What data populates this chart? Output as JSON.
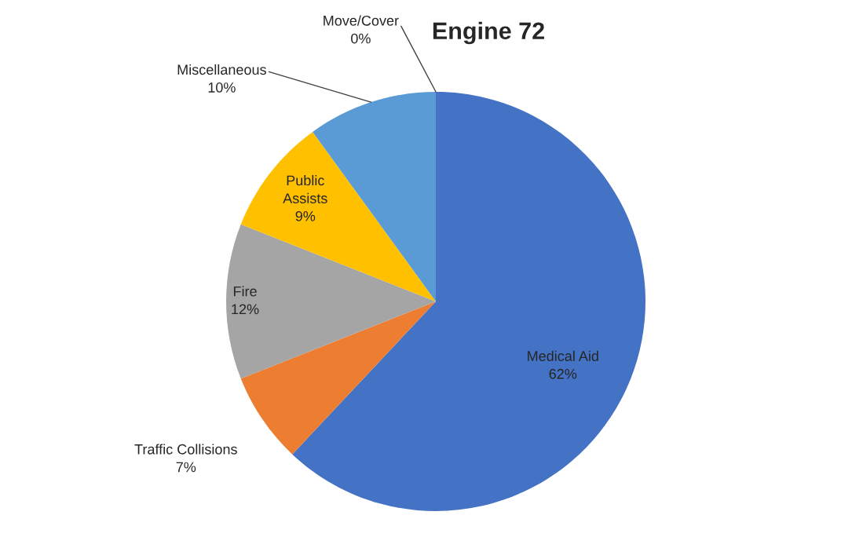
{
  "chart_data": {
    "type": "pie",
    "title": "Engine 72",
    "categories": [
      "Medical Aid",
      "Traffic Collisions",
      "Fire",
      "Public Assists",
      "Miscellaneous",
      "Move/Cover"
    ],
    "values": [
      62,
      7,
      12,
      9,
      10,
      0
    ],
    "value_labels": [
      "62%",
      "7%",
      "12%",
      "9%",
      "10%",
      "0%"
    ],
    "colors": [
      "#4472c4",
      "#ed7d31",
      "#a5a5a5",
      "#ffc000",
      "#5b9bd5",
      "#264478"
    ]
  }
}
